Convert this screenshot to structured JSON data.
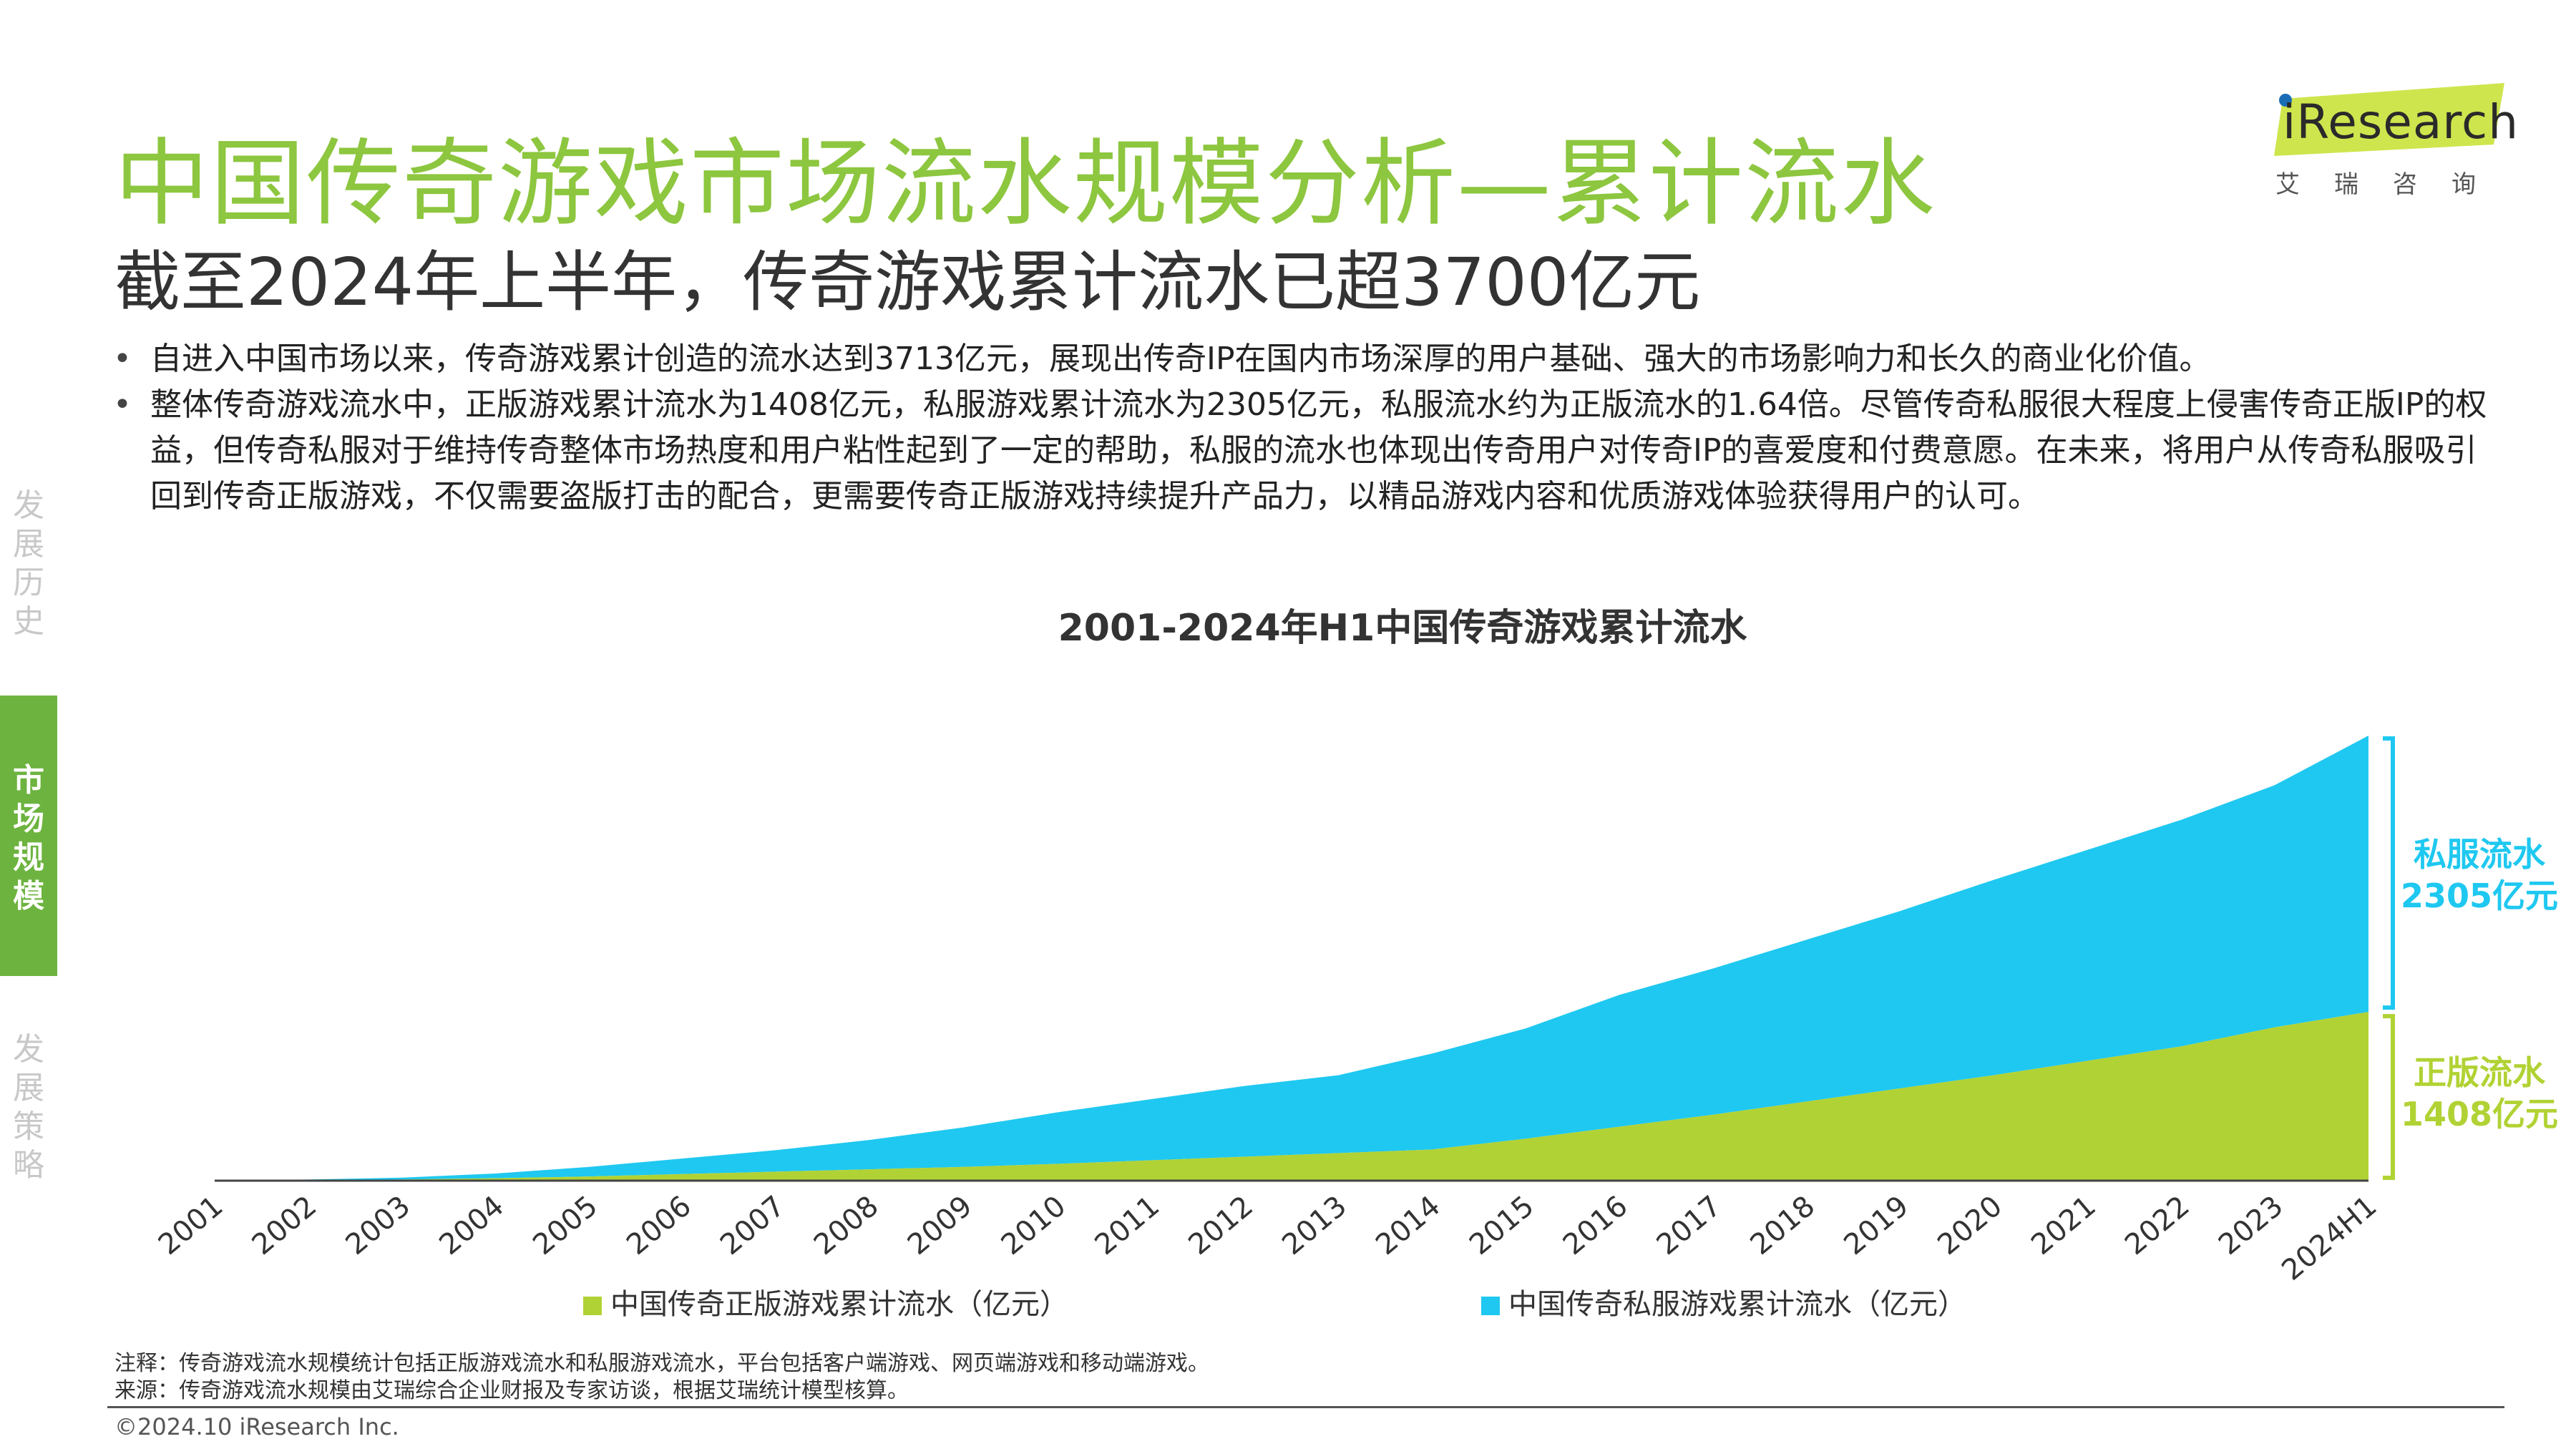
{
  "header": {
    "title": "中国传奇游戏市场流水规模分析—累计流水",
    "subtitle": "截至2024年上半年，传奇游戏累计流水已超3700亿元"
  },
  "logo": {
    "brand": "iResearch",
    "sub": "艾瑞咨询"
  },
  "bullets": [
    "自进入中国市场以来，传奇游戏累计创造的流水达到3713亿元，展现出传奇IP在国内市场深厚的用户基础、强大的市场影响力和长久的商业化价值。",
    "整体传奇游戏流水中，正版游戏累计流水为1408亿元，私服游戏累计流水为2305亿元，私服流水约为正版流水的1.64倍。尽管传奇私服很大程度上侵害传奇正版IP的权益，但传奇私服对于维持传奇整体市场热度和用户粘性起到了一定的帮助，私服的流水也体现出传奇用户对传奇IP的喜爱度和付费意愿。在未来，将用户从传奇私服吸引回到传奇正版游戏，不仅需要盗版打击的配合，更需要传奇正版游戏持续提升产品力，以精品游戏内容和优质游戏体验获得用户的认可。"
  ],
  "sidenav": [
    {
      "label": "发展历史",
      "active": false
    },
    {
      "label": "市场规模",
      "active": true
    },
    {
      "label": "发展策略",
      "active": false
    }
  ],
  "chart_data": {
    "type": "area",
    "stacked": true,
    "title": "2001-2024年H1中国传奇游戏累计流水",
    "categories": [
      "2001",
      "2002",
      "2003",
      "2004",
      "2005",
      "2006",
      "2007",
      "2008",
      "2009",
      "2010",
      "2011",
      "2012",
      "2013",
      "2014",
      "2015",
      "2016",
      "2017",
      "2018",
      "2019",
      "2020",
      "2021",
      "2022",
      "2023",
      "2024H1"
    ],
    "series": [
      {
        "name": "中国传奇正版游戏累计流水（亿元）",
        "color": "#B1D234",
        "values": [
          1,
          4,
          10,
          20,
          35,
          55,
          75,
          95,
          115,
          140,
          170,
          200,
          230,
          260,
          350,
          450,
          550,
          660,
          770,
          880,
          1000,
          1120,
          1280,
          1408
        ]
      },
      {
        "name": "中国传奇私服游戏累计流水（亿元）",
        "color": "#1FC8F0",
        "values": [
          2,
          6,
          15,
          40,
          80,
          130,
          180,
          245,
          330,
          430,
          510,
          590,
          650,
          800,
          920,
          1100,
          1220,
          1350,
          1480,
          1630,
          1760,
          1890,
          2020,
          2305
        ]
      }
    ],
    "ylim": [
      0,
      3713
    ],
    "grid": false,
    "legend_position": "bottom",
    "annotations": [
      {
        "label": "私服流水",
        "value": "2305亿元",
        "color": "#1FC8F0"
      },
      {
        "label": "正版流水",
        "value": "1408亿元",
        "color": "#B1D234"
      }
    ]
  },
  "notes": {
    "note": "注释：传奇游戏流水规模统计包括正版游戏流水和私服游戏流水，平台包括客户端游戏、网页端游戏和移动端游戏。",
    "source": "来源：传奇游戏流水规模由艾瑞综合企业财报及专家访谈，根据艾瑞统计模型核算。"
  },
  "copyright": "©2024.10 iResearch Inc."
}
